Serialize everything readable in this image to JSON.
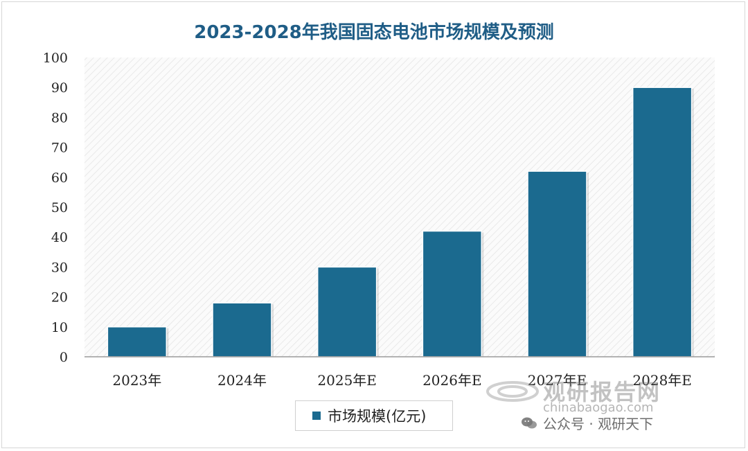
{
  "chart_data": {
    "type": "bar",
    "title": "2023-2028年我国固态电池市场规模及预测",
    "categories": [
      "2023年",
      "2024年",
      "2025年E",
      "2026年E",
      "2027年E",
      "2028年E"
    ],
    "series": [
      {
        "name": "市场规模(亿元)",
        "values": [
          10,
          18,
          30,
          42,
          62,
          90
        ]
      }
    ],
    "ylim": [
      0,
      100
    ],
    "yticks": [
      0,
      10,
      20,
      30,
      40,
      50,
      60,
      70,
      80,
      90,
      100
    ],
    "grid": false,
    "legend_position": "bottom",
    "bar_color": "#1b6a8f",
    "title_color": "#1f5d86"
  },
  "watermark": {
    "main": "观研报告网",
    "domain": "chinabaogao.com",
    "wechat": "公众号 · 观研天下"
  }
}
